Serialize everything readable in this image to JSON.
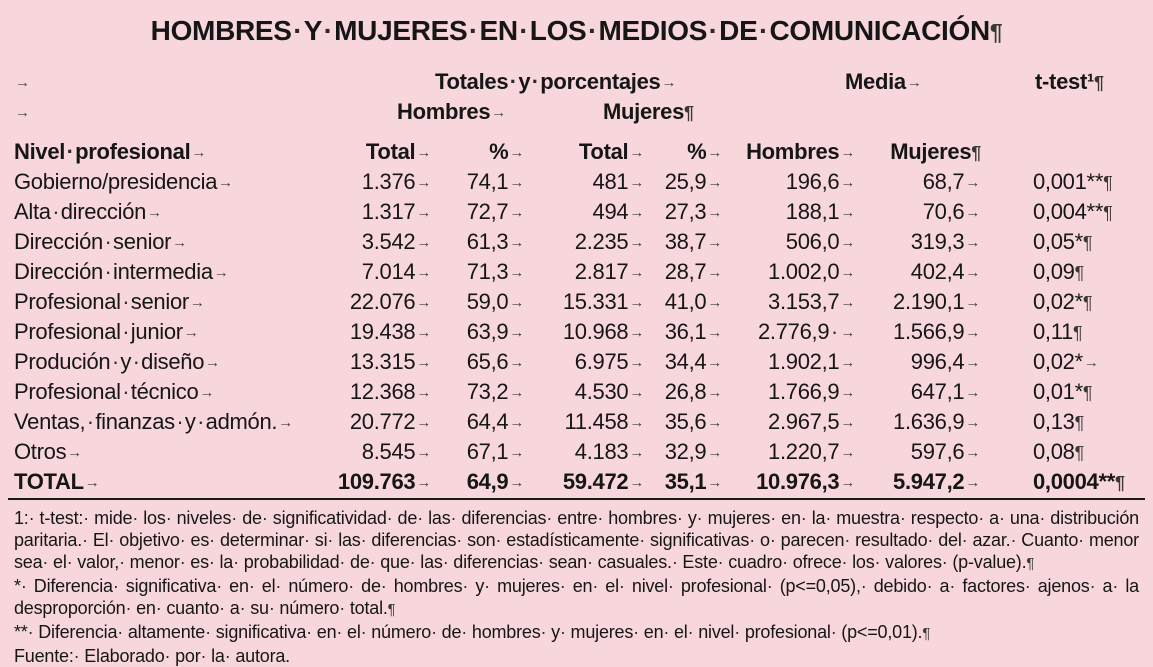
{
  "page": {
    "background_color": "#f7d7dc",
    "text_color": "#161616"
  },
  "title": "HOMBRES·Y·MUJERES·EN·LOS·MEDIOS·DE·COMUNICACIÓN¶",
  "table": {
    "group_header": [
      "→",
      "Totales·y·porcentajes→",
      "Media→",
      "t-test¹¶"
    ],
    "subgroup_header": [
      "→",
      "Hombres→",
      "Mujeres¶"
    ],
    "column_header": [
      "Nivel·profesional→",
      "Total→",
      "%→",
      "Total→",
      "%→",
      "Hombres→",
      "Mujeres¶",
      ""
    ],
    "rows": [
      {
        "bold": false,
        "cells": [
          "Gobierno/presidencia→",
          "1.376→",
          "74,1→",
          "481→",
          "25,9→",
          "196,6→",
          "68,7→",
          "0,001**¶"
        ]
      },
      {
        "bold": false,
        "cells": [
          "Alta·dirección→",
          "1.317→",
          "72,7→",
          "494→",
          "27,3→",
          "188,1→",
          "70,6→",
          "0,004**¶"
        ]
      },
      {
        "bold": false,
        "cells": [
          "Dirección·senior→",
          "3.542→",
          "61,3→",
          "2.235→",
          "38,7→",
          "506,0→",
          "319,3→",
          "0,05*¶"
        ]
      },
      {
        "bold": false,
        "cells": [
          "Dirección·intermedia→",
          "7.014→",
          "71,3→",
          "2.817→",
          "28,7→",
          "1.002,0→",
          "402,4→",
          "0,09¶"
        ]
      },
      {
        "bold": false,
        "cells": [
          "Profesional·senior→",
          "22.076→",
          "59,0→",
          "15.331→",
          "41,0→",
          "3.153,7→",
          "2.190,1→",
          "0,02*¶"
        ]
      },
      {
        "bold": false,
        "cells": [
          "Profesional·junior→",
          "19.438→",
          "63,9→",
          "10.968→",
          "36,1→",
          "2.776,9·→",
          "1.566,9→",
          "0,11¶"
        ]
      },
      {
        "bold": false,
        "cells": [
          "Produción·y·diseño→",
          "13.315→",
          "65,6→",
          "6.975→",
          "34,4→",
          "1.902,1→",
          "996,4→",
          "0,02*→"
        ]
      },
      {
        "bold": false,
        "cells": [
          "Profesional·técnico→",
          "12.368→",
          "73,2→",
          "4.530→",
          "26,8→",
          "1.766,9→",
          "647,1→",
          "0,01*¶"
        ]
      },
      {
        "bold": false,
        "cells": [
          "Ventas,·finanzas·y·admón.→",
          "20.772→",
          "64,4→",
          "11.458→",
          "35,6→",
          "2.967,5→",
          "1.636,9→",
          "0,13¶"
        ]
      },
      {
        "bold": false,
        "cells": [
          "Otros→",
          "8.545→",
          "67,1→",
          "4.183→",
          "32,9→",
          "1.220,7→",
          "597,6→",
          "0,08¶"
        ]
      },
      {
        "bold": true,
        "cells": [
          "TOTAL→",
          "109.763→",
          "64,9→",
          "59.472→",
          "35,1→",
          "10.976,3→",
          "5.947,2→",
          "0,0004**¶"
        ]
      }
    ]
  },
  "footnotes": [
    {
      "lines": [
        {
          "justify": true,
          "text": "1:·t-test:·mide·los·niveles·de·significatividad·de·las·diferencias·entre·hombres·y·mujeres·en·la·muestra·respecto·a·una·distribución"
        },
        {
          "justify": true,
          "text": "paritaria.·El·objetivo·es·determinar·si·las·diferencias·son·estadísticamente·significativas·o·parecen·resultado·del·azar.·Cuanto·menor"
        },
        {
          "justify": false,
          "text": "sea·el·valor,·menor·es·la·probabilidad·de·que·las·diferencias·sean·casuales.·Este·cuadro·ofrece·los·valores·(p-value).¶"
        }
      ]
    },
    {
      "lines": [
        {
          "justify": true,
          "text": "*·Diferencia·significativa·en·el·número·de·hombres·y·mujeres·en·el·nivel·profesional·(p<=0,05),·debido·a·factores·ajenos·a·la"
        },
        {
          "justify": false,
          "text": "desproporción·en·cuanto·a·su·número·total.¶"
        }
      ]
    },
    {
      "lines": [
        {
          "justify": false,
          "text": "**·Diferencia·altamente·significativa·en·el·número·de·hombres·y·mujeres·en·el·nivel·profesional·(p<=0,01).¶"
        }
      ]
    },
    {
      "lines": [
        {
          "justify": false,
          "text": "Fuente:·Elaborado·por·la·autora."
        }
      ]
    }
  ]
}
